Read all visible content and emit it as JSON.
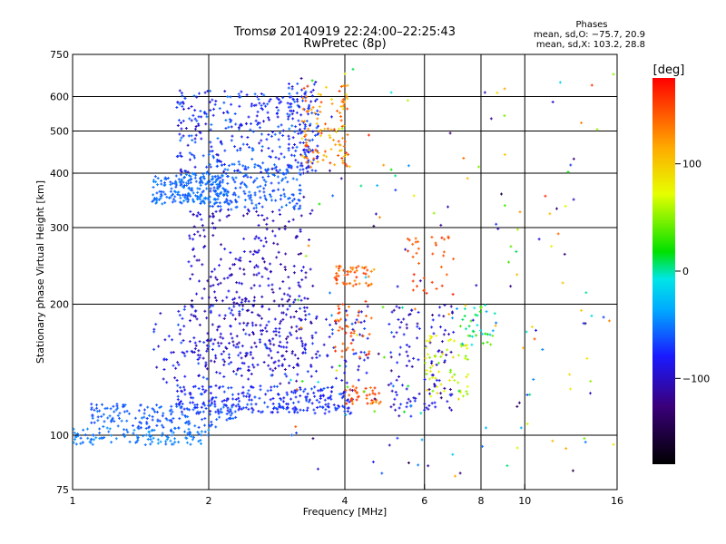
{
  "chart_data": {
    "type": "scatter",
    "title": "Tromsø 20140919 22:24:00–22:25:43",
    "subtitle": "RwPretec (8p)",
    "xlabel": "Frequency [MHz]",
    "ylabel": "Stationary phase Virtual Height [km]",
    "x_scale": "log",
    "y_scale": "log",
    "xlim": [
      1,
      16
    ],
    "ylim": [
      75,
      750
    ],
    "x_ticks": [
      "1",
      "2",
      "4",
      "6",
      "8",
      "10",
      "16"
    ],
    "x_tick_values": [
      1,
      2,
      4,
      6,
      8,
      10,
      16
    ],
    "y_ticks": [
      "75",
      "100",
      "200",
      "300",
      "400",
      "500",
      "600",
      "750"
    ],
    "y_tick_values": [
      75,
      100,
      200,
      300,
      400,
      500,
      600,
      750
    ],
    "x_grid": [
      2,
      4,
      6,
      8,
      10
    ],
    "y_grid": [
      100,
      200,
      300,
      400,
      500,
      600
    ],
    "annotation": {
      "title": "Phases",
      "lines": [
        "mean, sd,O: −75.7, 20.9",
        "mean, sd,X: 103.2, 28.8"
      ]
    },
    "colorbar": {
      "label": "[deg]",
      "range": [
        -180,
        180
      ],
      "ticks": [
        "100",
        "0",
        "−100"
      ],
      "tick_values": [
        100,
        0,
        -100
      ],
      "colors": [
        "#000000",
        "#3a007a",
        "#1a1aff",
        "#00aaff",
        "#00e6e6",
        "#00e000",
        "#e6ff00",
        "#ffaa00",
        "#ff0000"
      ]
    },
    "series": [
      {
        "clusters": [
          {
            "x": [
              1.0,
              2.0
            ],
            "y": [
              95,
              104
            ],
            "phase": [
              -60,
              -40
            ],
            "n": 120
          },
          {
            "x": [
              1.1,
              2.3
            ],
            "y": [
              104,
              118
            ],
            "phase": [
              -70,
              -50
            ],
            "n": 160
          },
          {
            "x": [
              1.7,
              4.2
            ],
            "y": [
              112,
              130
            ],
            "phase": [
              -90,
              -60
            ],
            "n": 260
          },
          {
            "x": [
              4.0,
              4.8
            ],
            "y": [
              118,
              130
            ],
            "phase": [
              120,
              170
            ],
            "n": 40
          },
          {
            "x": [
              1.5,
              2.2
            ],
            "y": [
              340,
              400
            ],
            "phase": [
              -65,
              -45
            ],
            "n": 220
          },
          {
            "x": [
              2.0,
              3.2
            ],
            "y": [
              330,
              420
            ],
            "phase": [
              -70,
              -50
            ],
            "n": 180
          },
          {
            "x": [
              1.7,
              3.5
            ],
            "y": [
              400,
              620
            ],
            "phase": [
              -100,
              -50
            ],
            "n": 320
          },
          {
            "x": [
              3.0,
              3.5
            ],
            "y": [
              400,
              650
            ],
            "phase": [
              -100,
              -60
            ],
            "n": 70
          },
          {
            "x": [
              3.2,
              4.1
            ],
            "y": [
              410,
              640
            ],
            "phase": [
              90,
              160
            ],
            "n": 110
          },
          {
            "x": [
              1.8,
              3.4
            ],
            "y": [
              140,
              330
            ],
            "phase": [
              -120,
              -80
            ],
            "n": 380
          },
          {
            "x": [
              1.5,
              4.5
            ],
            "y": [
              130,
              200
            ],
            "phase": [
              -110,
              -60
            ],
            "n": 220
          },
          {
            "x": [
              3.8,
              4.6
            ],
            "y": [
              220,
              245
            ],
            "phase": [
              120,
              170
            ],
            "n": 50
          },
          {
            "x": [
              3.8,
              4.6
            ],
            "y": [
              150,
              200
            ],
            "phase": [
              130,
              170
            ],
            "n": 40
          },
          {
            "x": [
              5.0,
              7.0
            ],
            "y": [
              110,
              200
            ],
            "phase": [
              -120,
              -70
            ],
            "n": 120
          },
          {
            "x": [
              5.5,
              7.0
            ],
            "y": [
              200,
              290
            ],
            "phase": [
              140,
              170
            ],
            "n": 35
          },
          {
            "x": [
              6.0,
              7.5
            ],
            "y": [
              120,
              170
            ],
            "phase": [
              40,
              100
            ],
            "n": 60
          },
          {
            "x": [
              7.0,
              8.6
            ],
            "y": [
              160,
              200
            ],
            "phase": [
              -40,
              50
            ],
            "n": 35
          },
          {
            "x": [
              3.0,
              16.0
            ],
            "y": [
              80,
              700
            ],
            "phase": [
              -150,
              170
            ],
            "n": 180
          }
        ]
      }
    ]
  }
}
